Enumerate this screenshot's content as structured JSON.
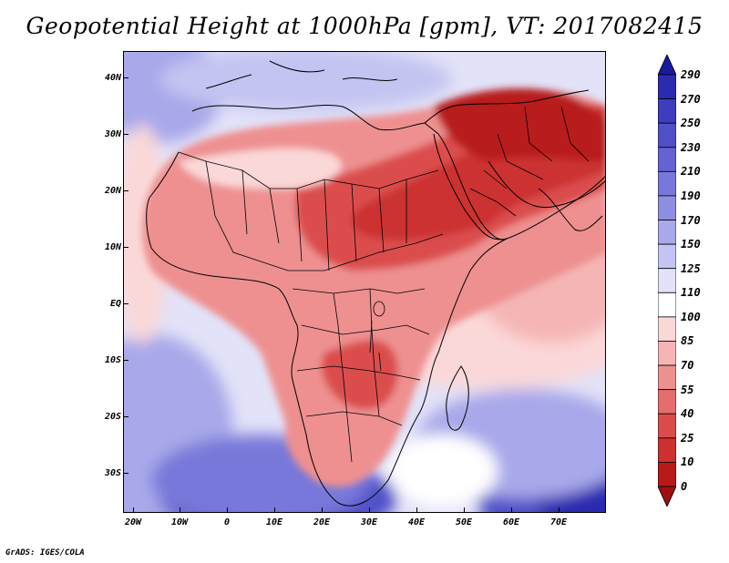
{
  "title": "Geopotential Height at 1000hPa [gpm], VT: 2017082415",
  "credit": "GrADS: IGES/COLA",
  "lat_labels": [
    "40N",
    "30N",
    "20N",
    "10N",
    "EQ",
    "10S",
    "20S",
    "30S"
  ],
  "lon_labels": [
    "20W",
    "10W",
    "0",
    "10E",
    "20E",
    "30E",
    "40E",
    "50E",
    "60E",
    "70E"
  ],
  "colorbar": {
    "levels": [
      "290",
      "270",
      "250",
      "230",
      "210",
      "190",
      "170",
      "150",
      "125",
      "110",
      "100",
      "85",
      "70",
      "55",
      "40",
      "25",
      "10",
      "0"
    ],
    "colors": [
      "#1a1a9e",
      "#2b2bb0",
      "#3d3dbe",
      "#5050c8",
      "#6363d2",
      "#7878da",
      "#8f8fe2",
      "#a8a8ea",
      "#c4c4f2",
      "#e2e2f8",
      "#ffffff",
      "#fbd8d8",
      "#f5b5b5",
      "#ee9090",
      "#e56d6d",
      "#db4d4d",
      "#cc3030",
      "#b81a1a",
      "#9e0f0f"
    ]
  },
  "colors": {
    "ocean_low": "#a8a8ea",
    "ocean_mid": "#c4c4f2",
    "ocean_high": "#7878da",
    "land_low": "#fbd8d8",
    "land_mid": "#ee9090",
    "land_high": "#cc3030",
    "land_peak": "#b81a1a"
  }
}
